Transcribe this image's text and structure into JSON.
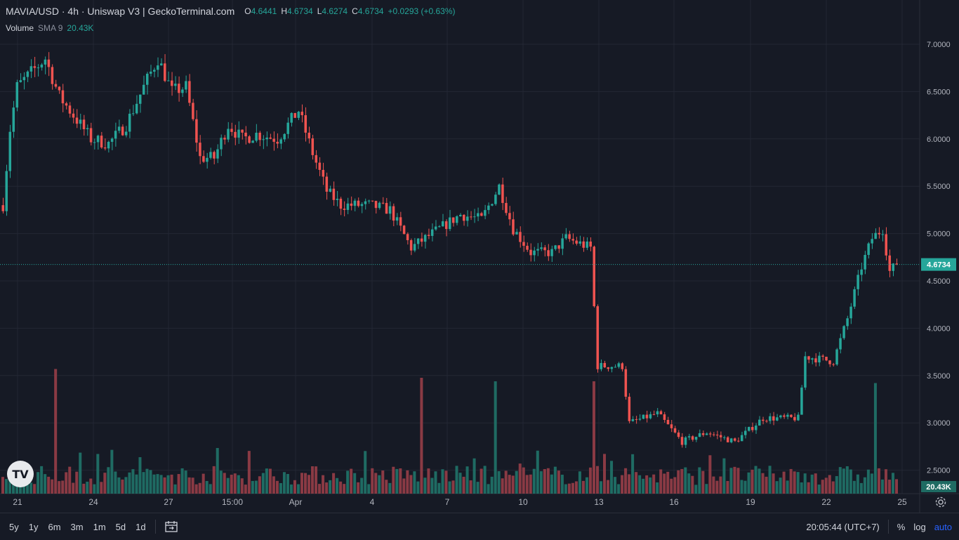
{
  "header": {
    "symbol_title": "MAVIA/USD · 4h · Uniswap V3  |  GeckoTerminal.com",
    "ohlc": [
      {
        "key": "O",
        "value": "4.6441"
      },
      {
        "key": "H",
        "value": "4.6734"
      },
      {
        "key": "L",
        "value": "4.6274"
      },
      {
        "key": "C",
        "value": "4.6734"
      }
    ],
    "change": "+0.0293 (+0.63%)"
  },
  "volume_legend": {
    "label": "Volume",
    "sma": "SMA 9",
    "value": "20.43K"
  },
  "price_axis": {
    "ticks": [
      "7.0000",
      "6.5000",
      "6.0000",
      "5.5000",
      "5.0000",
      "4.5000",
      "4.0000",
      "3.5000",
      "3.0000",
      "2.5000"
    ],
    "last_price_label": "4.6734",
    "volume_label": "20.43K"
  },
  "time_axis": {
    "ticks": [
      "21",
      "24",
      "27",
      "15:00",
      "Apr",
      "4",
      "7",
      "10",
      "13",
      "16",
      "19",
      "22",
      "25"
    ]
  },
  "range_buttons": [
    "5y",
    "1y",
    "6m",
    "3m",
    "1m",
    "5d",
    "1d"
  ],
  "clock": "20:05:44 (UTC+7)",
  "scale_tools": {
    "percent": "%",
    "log": "log",
    "auto": "auto"
  },
  "logo_text": "TV",
  "icons": {
    "calendar": "calendar-range-icon",
    "settings": "gear-icon"
  },
  "colors": {
    "background": "#161a25",
    "up": "#26a69a",
    "down": "#ef5350",
    "up_volume": "#1f6b63",
    "down_volume": "#8a3a44",
    "grid": "#232734",
    "accent": "#2962ff"
  },
  "chart_data": {
    "type": "candlestick",
    "interval": "4h",
    "y_range": [
      2.25,
      7.25
    ],
    "grid": true,
    "last_close": 4.6734,
    "price_anchors": [
      {
        "t": 0,
        "p": 5.3
      },
      {
        "t": 2,
        "p": 6.1
      },
      {
        "t": 4,
        "p": 6.55
      },
      {
        "t": 8,
        "p": 6.7
      },
      {
        "t": 12,
        "p": 6.85
      },
      {
        "t": 16,
        "p": 6.45
      },
      {
        "t": 20,
        "p": 6.25
      },
      {
        "t": 25,
        "p": 6.0
      },
      {
        "t": 30,
        "p": 5.95
      },
      {
        "t": 35,
        "p": 6.15
      },
      {
        "t": 40,
        "p": 6.55
      },
      {
        "t": 44,
        "p": 6.85
      },
      {
        "t": 48,
        "p": 6.5
      },
      {
        "t": 52,
        "p": 6.55
      },
      {
        "t": 56,
        "p": 5.8
      },
      {
        "t": 60,
        "p": 5.8
      },
      {
        "t": 64,
        "p": 6.15
      },
      {
        "t": 68,
        "p": 6.0
      },
      {
        "t": 72,
        "p": 6.05
      },
      {
        "t": 78,
        "p": 6.0
      },
      {
        "t": 84,
        "p": 6.3
      },
      {
        "t": 88,
        "p": 5.85
      },
      {
        "t": 92,
        "p": 5.45
      },
      {
        "t": 96,
        "p": 5.3
      },
      {
        "t": 104,
        "p": 5.3
      },
      {
        "t": 110,
        "p": 5.25
      },
      {
        "t": 116,
        "p": 4.85
      },
      {
        "t": 124,
        "p": 5.05
      },
      {
        "t": 130,
        "p": 5.2
      },
      {
        "t": 136,
        "p": 5.15
      },
      {
        "t": 141,
        "p": 5.5
      },
      {
        "t": 145,
        "p": 5.05
      },
      {
        "t": 150,
        "p": 4.8
      },
      {
        "t": 156,
        "p": 4.8
      },
      {
        "t": 160,
        "p": 4.95
      },
      {
        "t": 167,
        "p": 4.85
      },
      {
        "t": 169,
        "p": 3.6
      },
      {
        "t": 176,
        "p": 3.6
      },
      {
        "t": 178,
        "p": 3.0
      },
      {
        "t": 186,
        "p": 3.1
      },
      {
        "t": 193,
        "p": 2.8
      },
      {
        "t": 200,
        "p": 2.9
      },
      {
        "t": 208,
        "p": 2.8
      },
      {
        "t": 216,
        "p": 3.05
      },
      {
        "t": 226,
        "p": 3.05
      },
      {
        "t": 228,
        "p": 3.7
      },
      {
        "t": 236,
        "p": 3.65
      },
      {
        "t": 240,
        "p": 4.1
      },
      {
        "t": 244,
        "p": 4.65
      },
      {
        "t": 247,
        "p": 4.95
      },
      {
        "t": 250,
        "p": 5.05
      },
      {
        "t": 252,
        "p": 4.6
      },
      {
        "t": 254,
        "p": 4.6734
      }
    ],
    "volume_peaks": [
      {
        "t": 15,
        "v": 3.55
      },
      {
        "t": 119,
        "v": 3.3
      },
      {
        "t": 140,
        "v": 3.2
      },
      {
        "t": 168,
        "v": 3.2
      },
      {
        "t": 248,
        "v": 3.15
      }
    ]
  }
}
